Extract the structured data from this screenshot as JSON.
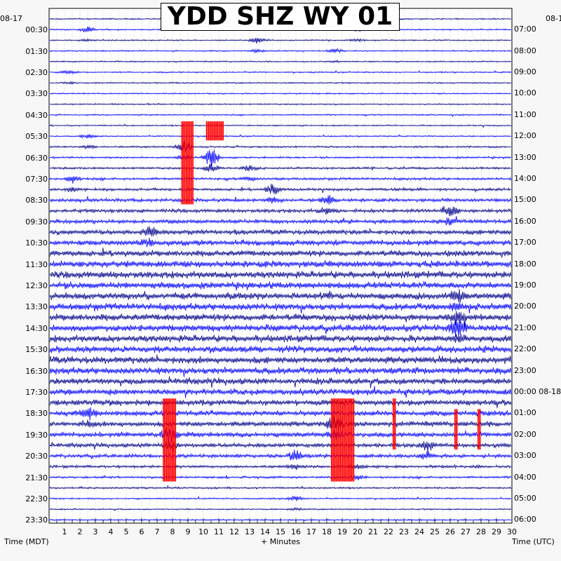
{
  "chart_data": {
    "type": "line",
    "title": "YDD SHZ WY 01",
    "xlabel": "+ Minutes",
    "left_axis_label": "Time (MDT)",
    "right_axis_label": "Time (UTC)",
    "left_date_label": "08-17",
    "right_date_label": "08-1",
    "x_ticks": [
      "1",
      "2",
      "3",
      "4",
      "5",
      "6",
      "7",
      "8",
      "9",
      "10",
      "11",
      "12",
      "13",
      "14",
      "15",
      "16",
      "17",
      "18",
      "19",
      "20",
      "21",
      "22",
      "23",
      "24",
      "25",
      "26",
      "27",
      "28",
      "29",
      "30"
    ],
    "xlim": [
      0,
      30
    ],
    "left_row_labels": [
      "00:30",
      "01:30",
      "02:30",
      "03:30",
      "04:30",
      "05:30",
      "06:30",
      "07:30",
      "08:30",
      "09:30",
      "10:30",
      "11:30",
      "12:30",
      "13:30",
      "14:30",
      "15:30",
      "16:30",
      "17:30",
      "18:30",
      "19:30",
      "20:30",
      "21:30",
      "22:30",
      "23:30"
    ],
    "right_row_labels": [
      "07:00",
      "08:00",
      "09:00",
      "10:00",
      "11:00",
      "12:00",
      "13:00",
      "14:00",
      "15:00",
      "16:00",
      "17:00",
      "18:00",
      "19:00",
      "20:00",
      "21:00",
      "22:00",
      "23:00",
      "00:00 08-18",
      "01:00",
      "02:00",
      "03:00",
      "04:00",
      "05:00",
      "06:00"
    ],
    "trace_rows": 48,
    "row_minutes": 30,
    "trace_colors": [
      "#00008b",
      "#0000ff"
    ],
    "clip_color": "#ff0000",
    "grid": true,
    "noise_amplitude_by_row": [
      1,
      1,
      1,
      1,
      1,
      1,
      1,
      1,
      1,
      1,
      1,
      1,
      1.3,
      1.4,
      1.6,
      1.8,
      2,
      2.4,
      2.6,
      3,
      3.6,
      4,
      4.4,
      4.8,
      5,
      5,
      5,
      5,
      5,
      5,
      5,
      5,
      5,
      4.8,
      4.6,
      4.4,
      4.2,
      4,
      3.8,
      3.6,
      3,
      2.6,
      2,
      1.6,
      1.3,
      1.1,
      1,
      1
    ],
    "events": [
      {
        "row": 1,
        "minute": 2.5,
        "amplitude": 4
      },
      {
        "row": 1,
        "minute": 20,
        "amplitude": 4
      },
      {
        "row": 2,
        "minute": 13.5,
        "amplitude": 5
      },
      {
        "row": 3,
        "minute": 18.5,
        "amplitude": 3
      },
      {
        "row": 5,
        "minute": 1.3,
        "amplitude": 3
      },
      {
        "row": 11,
        "minute": 2.5,
        "amplitude": 4
      },
      {
        "row": 12,
        "minute": 8.7,
        "amplitude": 10
      },
      {
        "row": 13,
        "minute": 10.5,
        "amplitude": 14
      },
      {
        "row": 14,
        "minute": 13,
        "amplitude": 5
      },
      {
        "row": 15,
        "minute": 1.5,
        "amplitude": 7
      },
      {
        "row": 16,
        "minute": 14.5,
        "amplitude": 9
      },
      {
        "row": 17,
        "minute": 18,
        "amplitude": 10
      },
      {
        "row": 18,
        "minute": 26,
        "amplitude": 10
      },
      {
        "row": 20,
        "minute": 6.5,
        "amplitude": 8
      },
      {
        "row": 26,
        "minute": 26.5,
        "amplitude": 9
      },
      {
        "row": 28,
        "minute": 26.5,
        "amplitude": 10
      },
      {
        "row": 29,
        "minute": 26.5,
        "amplitude": 10
      },
      {
        "row": 37,
        "minute": 2.5,
        "amplitude": 8
      },
      {
        "row": 38,
        "minute": 18.5,
        "amplitude": 14
      },
      {
        "row": 39,
        "minute": 7.8,
        "amplitude": 14
      },
      {
        "row": 40,
        "minute": 24.5,
        "amplitude": 9
      },
      {
        "row": 41,
        "minute": 16,
        "amplitude": 8
      },
      {
        "row": 42,
        "minute": 20,
        "amplitude": 6
      },
      {
        "row": 45,
        "minute": 16,
        "amplitude": 4
      }
    ],
    "clipped_segments": [
      {
        "row_start": 10,
        "row_end": 17,
        "minute_start": 8.6,
        "minute_end": 9.4
      },
      {
        "row_start": 10,
        "row_end": 11,
        "minute_start": 10.2,
        "minute_end": 11.3
      },
      {
        "row_start": 36,
        "row_end": 43,
        "minute_start": 7.4,
        "minute_end": 8.2
      },
      {
        "row_start": 36,
        "row_end": 43,
        "minute_start": 18.3,
        "minute_end": 19.8
      },
      {
        "row_start": 36,
        "row_end": 40,
        "minute_start": 22.3,
        "minute_end": 22.5
      },
      {
        "row_start": 37,
        "row_end": 40,
        "minute_start": 27.8,
        "minute_end": 28
      },
      {
        "row_start": 37,
        "row_end": 40,
        "minute_start": 26.3,
        "minute_end": 26.5
      }
    ]
  }
}
